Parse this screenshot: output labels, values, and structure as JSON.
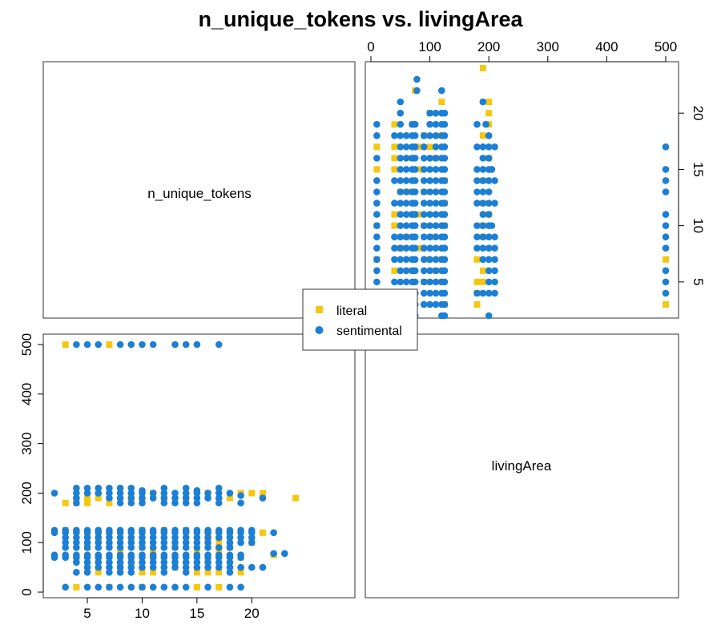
{
  "colors": {
    "literal": "#F5C710",
    "sentimental": "#1B7FD6"
  },
  "chart_data": {
    "type": "scatter",
    "title": "n_unique_tokens vs. livingArea",
    "variables": [
      "n_unique_tokens",
      "livingArea"
    ],
    "n_unique_tokens_ticks": [
      "5",
      "10",
      "15",
      "20"
    ],
    "livingArea_ticks": [
      "0",
      "100",
      "200",
      "300",
      "400",
      "500"
    ],
    "n_unique_tokens_range": [
      2,
      24
    ],
    "livingArea_range": [
      0,
      500
    ],
    "legend": {
      "position": "center",
      "entries": [
        "literal",
        "sentimental"
      ]
    },
    "series": [
      {
        "name": "literal",
        "marker": "square",
        "points": [
          [
            3,
            180
          ],
          [
            4,
            180
          ],
          [
            5,
            190
          ],
          [
            5,
            180
          ],
          [
            6,
            190
          ],
          [
            7,
            180
          ],
          [
            9,
            190
          ],
          [
            10,
            190
          ],
          [
            11,
            200
          ],
          [
            12,
            190
          ],
          [
            14,
            190
          ],
          [
            16,
            200
          ],
          [
            18,
            190
          ],
          [
            19,
            200
          ],
          [
            20,
            200
          ],
          [
            21,
            200
          ],
          [
            24,
            190
          ],
          [
            3,
            125
          ],
          [
            5,
            120
          ],
          [
            6,
            110
          ],
          [
            7,
            120
          ],
          [
            9,
            105
          ],
          [
            10,
            125
          ],
          [
            12,
            125
          ],
          [
            14,
            125
          ],
          [
            16,
            110
          ],
          [
            17,
            100
          ],
          [
            18,
            115
          ],
          [
            20,
            100
          ],
          [
            21,
            120
          ],
          [
            5,
            90
          ],
          [
            7,
            95
          ],
          [
            8,
            85
          ],
          [
            10,
            90
          ],
          [
            11,
            80
          ],
          [
            13,
            90
          ],
          [
            15,
            85
          ],
          [
            17,
            80
          ],
          [
            18,
            90
          ],
          [
            4,
            65
          ],
          [
            6,
            70
          ],
          [
            9,
            60
          ],
          [
            11,
            70
          ],
          [
            13,
            65
          ],
          [
            16,
            70
          ],
          [
            19,
            70
          ],
          [
            22,
            75
          ],
          [
            6,
            40
          ],
          [
            8,
            50
          ],
          [
            10,
            40
          ],
          [
            11,
            40
          ],
          [
            13,
            50
          ],
          [
            15,
            40
          ],
          [
            16,
            40
          ],
          [
            17,
            40
          ],
          [
            19,
            40
          ],
          [
            4,
            10
          ],
          [
            7,
            10
          ],
          [
            10,
            10
          ],
          [
            15,
            10
          ],
          [
            17,
            10
          ],
          [
            3,
            500
          ],
          [
            7,
            500
          ]
        ]
      },
      {
        "name": "sentimental",
        "marker": "circle",
        "points": [
          [
            4,
            500
          ],
          [
            5,
            500
          ],
          [
            6,
            500
          ],
          [
            8,
            500
          ],
          [
            9,
            500
          ],
          [
            10,
            500
          ],
          [
            11,
            500
          ],
          [
            13,
            500
          ],
          [
            14,
            500
          ],
          [
            15,
            500
          ],
          [
            17,
            500
          ],
          [
            2,
            200
          ],
          [
            4,
            210
          ],
          [
            5,
            210
          ],
          [
            6,
            210
          ],
          [
            7,
            210
          ],
          [
            8,
            210
          ],
          [
            9,
            210
          ],
          [
            10,
            205
          ],
          [
            12,
            210
          ],
          [
            14,
            210
          ],
          [
            15,
            205
          ],
          [
            17,
            210
          ],
          [
            19,
            195
          ],
          [
            4,
            200
          ],
          [
            5,
            200
          ],
          [
            6,
            200
          ],
          [
            7,
            200
          ],
          [
            8,
            200
          ],
          [
            9,
            200
          ],
          [
            10,
            200
          ],
          [
            11,
            200
          ],
          [
            12,
            200
          ],
          [
            13,
            200
          ],
          [
            14,
            200
          ],
          [
            15,
            200
          ],
          [
            16,
            200
          ],
          [
            17,
            200
          ],
          [
            18,
            200
          ],
          [
            4,
            190
          ],
          [
            7,
            190
          ],
          [
            8,
            190
          ],
          [
            9,
            190
          ],
          [
            10,
            190
          ],
          [
            11,
            190
          ],
          [
            12,
            190
          ],
          [
            13,
            190
          ],
          [
            14,
            190
          ],
          [
            15,
            190
          ],
          [
            16,
            190
          ],
          [
            17,
            190
          ],
          [
            21,
            190
          ],
          [
            4,
            180
          ],
          [
            8,
            180
          ],
          [
            9,
            180
          ],
          [
            10,
            180
          ],
          [
            12,
            180
          ],
          [
            13,
            180
          ],
          [
            14,
            180
          ],
          [
            15,
            180
          ],
          [
            17,
            180
          ],
          [
            19,
            180
          ],
          [
            2,
            125
          ],
          [
            3,
            125
          ],
          [
            4,
            125
          ],
          [
            5,
            125
          ],
          [
            6,
            125
          ],
          [
            7,
            125
          ],
          [
            8,
            125
          ],
          [
            9,
            125
          ],
          [
            10,
            125
          ],
          [
            11,
            125
          ],
          [
            12,
            125
          ],
          [
            13,
            125
          ],
          [
            14,
            125
          ],
          [
            15,
            125
          ],
          [
            16,
            125
          ],
          [
            17,
            125
          ],
          [
            18,
            125
          ],
          [
            19,
            125
          ],
          [
            20,
            125
          ],
          [
            22,
            120
          ],
          [
            2,
            120
          ],
          [
            3,
            120
          ],
          [
            4,
            120
          ],
          [
            5,
            120
          ],
          [
            6,
            120
          ],
          [
            7,
            120
          ],
          [
            8,
            120
          ],
          [
            9,
            120
          ],
          [
            10,
            120
          ],
          [
            11,
            120
          ],
          [
            12,
            120
          ],
          [
            13,
            120
          ],
          [
            14,
            120
          ],
          [
            15,
            120
          ],
          [
            16,
            120
          ],
          [
            17,
            120
          ],
          [
            18,
            120
          ],
          [
            19,
            120
          ],
          [
            20,
            120
          ],
          [
            3,
            110
          ],
          [
            4,
            110
          ],
          [
            5,
            110
          ],
          [
            6,
            110
          ],
          [
            7,
            110
          ],
          [
            8,
            110
          ],
          [
            9,
            110
          ],
          [
            10,
            110
          ],
          [
            11,
            110
          ],
          [
            12,
            110
          ],
          [
            13,
            110
          ],
          [
            14,
            110
          ],
          [
            15,
            110
          ],
          [
            16,
            110
          ],
          [
            17,
            110
          ],
          [
            18,
            110
          ],
          [
            19,
            110
          ],
          [
            20,
            110
          ],
          [
            3,
            100
          ],
          [
            4,
            100
          ],
          [
            5,
            100
          ],
          [
            6,
            100
          ],
          [
            7,
            100
          ],
          [
            8,
            100
          ],
          [
            9,
            100
          ],
          [
            10,
            100
          ],
          [
            11,
            100
          ],
          [
            12,
            100
          ],
          [
            13,
            100
          ],
          [
            14,
            100
          ],
          [
            15,
            100
          ],
          [
            16,
            100
          ],
          [
            18,
            100
          ],
          [
            19,
            100
          ],
          [
            20,
            100
          ],
          [
            3,
            90
          ],
          [
            4,
            90
          ],
          [
            5,
            90
          ],
          [
            6,
            90
          ],
          [
            7,
            90
          ],
          [
            8,
            90
          ],
          [
            9,
            90
          ],
          [
            10,
            90
          ],
          [
            11,
            90
          ],
          [
            12,
            90
          ],
          [
            13,
            90
          ],
          [
            14,
            90
          ],
          [
            15,
            90
          ],
          [
            16,
            90
          ],
          [
            17,
            90
          ],
          [
            18,
            90
          ],
          [
            2,
            75
          ],
          [
            3,
            75
          ],
          [
            4,
            75
          ],
          [
            5,
            75
          ],
          [
            6,
            75
          ],
          [
            7,
            75
          ],
          [
            8,
            75
          ],
          [
            9,
            75
          ],
          [
            10,
            75
          ],
          [
            11,
            75
          ],
          [
            12,
            75
          ],
          [
            13,
            75
          ],
          [
            14,
            75
          ],
          [
            15,
            75
          ],
          [
            16,
            75
          ],
          [
            17,
            75
          ],
          [
            18,
            75
          ],
          [
            19,
            75
          ],
          [
            22,
            78
          ],
          [
            23,
            78
          ],
          [
            2,
            70
          ],
          [
            3,
            70
          ],
          [
            4,
            70
          ],
          [
            5,
            70
          ],
          [
            6,
            70
          ],
          [
            7,
            70
          ],
          [
            8,
            70
          ],
          [
            9,
            70
          ],
          [
            10,
            70
          ],
          [
            11,
            70
          ],
          [
            12,
            70
          ],
          [
            13,
            70
          ],
          [
            14,
            70
          ],
          [
            15,
            70
          ],
          [
            16,
            70
          ],
          [
            17,
            70
          ],
          [
            18,
            70
          ],
          [
            19,
            70
          ],
          [
            4,
            60
          ],
          [
            5,
            60
          ],
          [
            6,
            60
          ],
          [
            7,
            60
          ],
          [
            8,
            60
          ],
          [
            9,
            60
          ],
          [
            10,
            60
          ],
          [
            11,
            60
          ],
          [
            12,
            60
          ],
          [
            13,
            60
          ],
          [
            14,
            60
          ],
          [
            15,
            60
          ],
          [
            16,
            60
          ],
          [
            17,
            60
          ],
          [
            18,
            60
          ],
          [
            5,
            50
          ],
          [
            6,
            50
          ],
          [
            7,
            50
          ],
          [
            8,
            50
          ],
          [
            9,
            50
          ],
          [
            10,
            50
          ],
          [
            11,
            50
          ],
          [
            12,
            50
          ],
          [
            13,
            50
          ],
          [
            14,
            50
          ],
          [
            15,
            50
          ],
          [
            16,
            50
          ],
          [
            17,
            50
          ],
          [
            18,
            50
          ],
          [
            19,
            50
          ],
          [
            20,
            50
          ],
          [
            21,
            50
          ],
          [
            4,
            40
          ],
          [
            5,
            40
          ],
          [
            7,
            40
          ],
          [
            8,
            40
          ],
          [
            9,
            40
          ],
          [
            12,
            40
          ],
          [
            14,
            40
          ],
          [
            18,
            40
          ],
          [
            3,
            10
          ],
          [
            5,
            10
          ],
          [
            6,
            10
          ],
          [
            7,
            10
          ],
          [
            8,
            10
          ],
          [
            9,
            10
          ],
          [
            10,
            10
          ],
          [
            11,
            10
          ],
          [
            12,
            10
          ],
          [
            13,
            10
          ],
          [
            14,
            10
          ],
          [
            16,
            10
          ],
          [
            18,
            10
          ],
          [
            19,
            10
          ]
        ]
      }
    ]
  }
}
